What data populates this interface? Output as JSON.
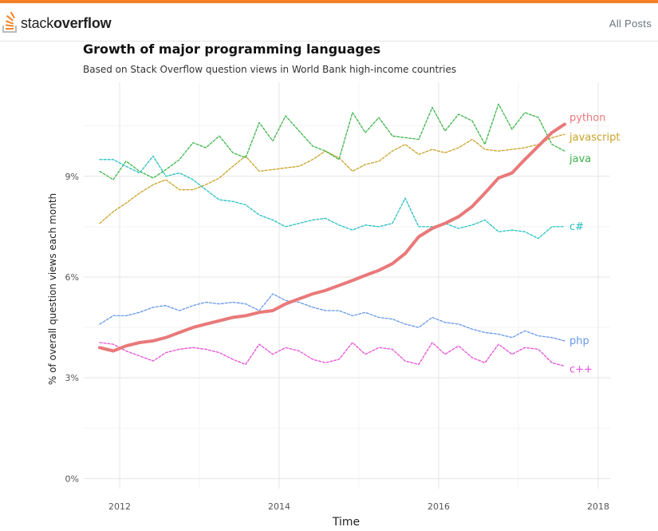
{
  "header": {
    "logo_text_part1": "stack",
    "logo_text_part2": "overflow",
    "nav_all_posts": "All Posts"
  },
  "colors": {
    "accent": "#f48024",
    "python": "#e9797a",
    "javascript": "#c9a227",
    "java": "#3cb54a",
    "csharp": "#26bfc1",
    "php": "#6597e8",
    "cpp": "#e54fd6"
  },
  "chart_data": {
    "type": "line",
    "title": "Growth of major programming languages",
    "subtitle": "Based on Stack Overflow question views in World Bank high-income countries",
    "xlabel": "Time",
    "ylabel": "% of overall question views each month",
    "xlim": [
      2011.55,
      2018.15
    ],
    "ylim": [
      -0.3,
      11.8
    ],
    "x_ticks": [
      2012,
      2014,
      2016,
      2018
    ],
    "x_tick_labels": [
      "2012",
      "2014",
      "2016",
      "2018"
    ],
    "y_ticks": [
      0,
      3,
      6,
      9
    ],
    "y_tick_labels": [
      "0%",
      "3%",
      "6%",
      "9%"
    ],
    "grid": true,
    "legend": "direct labels at right end of lines",
    "series": [
      {
        "name": "python",
        "key": "python",
        "dashed": false,
        "width": 4,
        "x": [
          2011.75,
          2011.92,
          2012.08,
          2012.25,
          2012.42,
          2012.58,
          2012.75,
          2012.92,
          2013.08,
          2013.25,
          2013.42,
          2013.58,
          2013.75,
          2013.92,
          2014.08,
          2014.25,
          2014.42,
          2014.58,
          2014.75,
          2014.92,
          2015.08,
          2015.25,
          2015.42,
          2015.58,
          2015.75,
          2015.92,
          2016.08,
          2016.25,
          2016.42,
          2016.58,
          2016.75,
          2016.92,
          2017.08,
          2017.25,
          2017.42,
          2017.58
        ],
        "y": [
          3.9,
          3.8,
          3.95,
          4.05,
          4.1,
          4.2,
          4.35,
          4.5,
          4.6,
          4.7,
          4.8,
          4.85,
          4.95,
          5.0,
          5.2,
          5.35,
          5.5,
          5.6,
          5.75,
          5.9,
          6.05,
          6.2,
          6.4,
          6.7,
          7.2,
          7.45,
          7.6,
          7.8,
          8.1,
          8.5,
          8.95,
          9.1,
          9.5,
          9.9,
          10.3,
          10.55
        ]
      },
      {
        "name": "javascript",
        "key": "javascript",
        "dashed": true,
        "width": 1.3,
        "x": [
          2011.75,
          2011.92,
          2012.08,
          2012.25,
          2012.42,
          2012.58,
          2012.75,
          2012.92,
          2013.08,
          2013.25,
          2013.42,
          2013.58,
          2013.75,
          2013.92,
          2014.08,
          2014.25,
          2014.42,
          2014.58,
          2014.75,
          2014.92,
          2015.08,
          2015.25,
          2015.42,
          2015.58,
          2015.75,
          2015.92,
          2016.08,
          2016.25,
          2016.42,
          2016.58,
          2016.75,
          2016.92,
          2017.08,
          2017.25,
          2017.42,
          2017.58
        ],
        "y": [
          7.6,
          7.95,
          8.2,
          8.5,
          8.75,
          8.9,
          8.6,
          8.6,
          8.75,
          8.95,
          9.3,
          9.6,
          9.15,
          9.2,
          9.25,
          9.3,
          9.5,
          9.75,
          9.55,
          9.15,
          9.35,
          9.45,
          9.75,
          9.95,
          9.65,
          9.8,
          9.7,
          9.85,
          10.1,
          9.8,
          9.75,
          9.8,
          9.85,
          9.95,
          10.15,
          10.25
        ]
      },
      {
        "name": "java",
        "key": "java",
        "dashed": true,
        "width": 1.3,
        "x": [
          2011.75,
          2011.92,
          2012.08,
          2012.25,
          2012.42,
          2012.58,
          2012.75,
          2012.92,
          2013.08,
          2013.25,
          2013.42,
          2013.58,
          2013.75,
          2013.92,
          2014.08,
          2014.25,
          2014.42,
          2014.58,
          2014.75,
          2014.92,
          2015.08,
          2015.25,
          2015.42,
          2015.58,
          2015.75,
          2015.92,
          2016.08,
          2016.25,
          2016.42,
          2016.58,
          2016.75,
          2016.92,
          2017.08,
          2017.25,
          2017.42,
          2017.58
        ],
        "y": [
          9.15,
          8.9,
          9.45,
          9.15,
          8.95,
          9.2,
          9.5,
          10.0,
          9.85,
          10.2,
          9.7,
          9.55,
          10.6,
          10.05,
          10.8,
          10.35,
          9.9,
          9.75,
          9.5,
          10.9,
          10.3,
          10.75,
          10.2,
          10.15,
          10.1,
          11.05,
          10.35,
          10.85,
          10.65,
          9.95,
          11.15,
          10.4,
          10.9,
          10.75,
          9.95,
          9.75
        ]
      },
      {
        "name": "c#",
        "key": "csharp",
        "dashed": true,
        "width": 1.3,
        "x": [
          2011.75,
          2011.92,
          2012.08,
          2012.25,
          2012.42,
          2012.58,
          2012.75,
          2012.92,
          2013.08,
          2013.25,
          2013.42,
          2013.58,
          2013.75,
          2013.92,
          2014.08,
          2014.25,
          2014.42,
          2014.58,
          2014.75,
          2014.92,
          2015.08,
          2015.25,
          2015.42,
          2015.58,
          2015.75,
          2015.92,
          2016.08,
          2016.25,
          2016.42,
          2016.58,
          2016.75,
          2016.92,
          2017.08,
          2017.25,
          2017.42,
          2017.58
        ],
        "y": [
          9.5,
          9.5,
          9.3,
          9.1,
          9.6,
          9.0,
          9.1,
          8.9,
          8.6,
          8.3,
          8.25,
          8.15,
          7.85,
          7.7,
          7.5,
          7.6,
          7.7,
          7.75,
          7.55,
          7.4,
          7.55,
          7.5,
          7.6,
          8.35,
          7.5,
          7.5,
          7.6,
          7.45,
          7.55,
          7.7,
          7.35,
          7.4,
          7.35,
          7.15,
          7.5,
          7.5
        ]
      },
      {
        "name": "php",
        "key": "php",
        "dashed": true,
        "width": 1.3,
        "x": [
          2011.75,
          2011.92,
          2012.08,
          2012.25,
          2012.42,
          2012.58,
          2012.75,
          2012.92,
          2013.08,
          2013.25,
          2013.42,
          2013.58,
          2013.75,
          2013.92,
          2014.08,
          2014.25,
          2014.42,
          2014.58,
          2014.75,
          2014.92,
          2015.08,
          2015.25,
          2015.42,
          2015.58,
          2015.75,
          2015.92,
          2016.08,
          2016.25,
          2016.42,
          2016.58,
          2016.75,
          2016.92,
          2017.08,
          2017.25,
          2017.42,
          2017.58
        ],
        "y": [
          4.6,
          4.85,
          4.85,
          4.95,
          5.1,
          5.15,
          5.0,
          5.15,
          5.25,
          5.2,
          5.25,
          5.2,
          5.0,
          5.5,
          5.3,
          5.25,
          5.1,
          5.0,
          5.0,
          4.85,
          4.95,
          4.8,
          4.75,
          4.6,
          4.5,
          4.8,
          4.65,
          4.6,
          4.45,
          4.35,
          4.3,
          4.2,
          4.4,
          4.25,
          4.2,
          4.1
        ]
      },
      {
        "name": "c++",
        "key": "cpp",
        "dashed": true,
        "width": 1.3,
        "x": [
          2011.75,
          2011.92,
          2012.08,
          2012.25,
          2012.42,
          2012.58,
          2012.75,
          2012.92,
          2013.08,
          2013.25,
          2013.42,
          2013.58,
          2013.75,
          2013.92,
          2014.08,
          2014.25,
          2014.42,
          2014.58,
          2014.75,
          2014.92,
          2015.08,
          2015.25,
          2015.42,
          2015.58,
          2015.75,
          2015.92,
          2016.08,
          2016.25,
          2016.42,
          2016.58,
          2016.75,
          2016.92,
          2017.08,
          2017.25,
          2017.42,
          2017.58
        ],
        "y": [
          4.05,
          4.0,
          3.8,
          3.65,
          3.5,
          3.75,
          3.85,
          3.9,
          3.85,
          3.75,
          3.55,
          3.4,
          4.0,
          3.7,
          3.9,
          3.8,
          3.55,
          3.45,
          3.55,
          4.05,
          3.7,
          3.9,
          3.85,
          3.5,
          3.4,
          4.05,
          3.7,
          3.95,
          3.6,
          3.45,
          4.0,
          3.7,
          3.9,
          3.85,
          3.45,
          3.35
        ]
      }
    ]
  }
}
